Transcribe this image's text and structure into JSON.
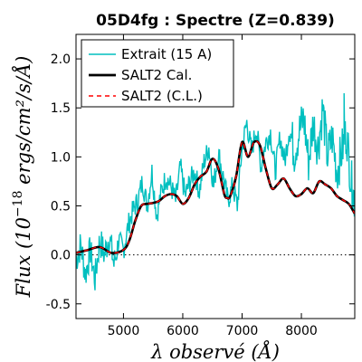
{
  "chart_data": {
    "type": "line",
    "title": "05D4fg : Spectre (Z=0.839)",
    "xlabel": "λ observé (Å)",
    "ylabel_pre": "Flux (10",
    "ylabel_exp": "−18",
    "ylabel_post": " ergs/cm²/s/Å)",
    "xlim": [
      4200,
      8900
    ],
    "ylim": [
      -0.65,
      2.25
    ],
    "xticks": [
      5000,
      6000,
      7000,
      8000
    ],
    "xtick_labels": [
      "5000",
      "6000",
      "7000",
      "8000"
    ],
    "yticks": [
      -0.5,
      0.0,
      0.5,
      1.0,
      1.5,
      2.0
    ],
    "ytick_labels": [
      "-0.5",
      "0.0",
      "0.5",
      "1.0",
      "1.5",
      "2.0"
    ],
    "zero_line": true,
    "legend_position": "top-left",
    "colors": {
      "extrait": "#00bfbf",
      "salt2_cal": "#000000",
      "salt2_cl": "#ff0000",
      "zero": "#000000"
    },
    "series": [
      {
        "name": "Extrait (15 A)",
        "style": "noisy-line",
        "x": [
          4200,
          4280,
          4360,
          4440,
          4520,
          4600,
          4680,
          4760,
          4840,
          4920,
          5000,
          5080,
          5160,
          5240,
          5320,
          5400,
          5480,
          5560,
          5640,
          5720,
          5800,
          5880,
          5960,
          6040,
          6120,
          6200,
          6280,
          6360,
          6440,
          6520,
          6600,
          6680,
          6760,
          6840,
          6920,
          7000,
          7080,
          7160,
          7240,
          7320,
          7400,
          7480,
          7560,
          7640,
          7720,
          7800,
          7880,
          7960,
          8040,
          8120,
          8200,
          8280,
          8360,
          8440,
          8520,
          8600,
          8680,
          8760,
          8840,
          8900
        ],
        "y": [
          -0.05,
          0.1,
          -0.2,
          0.05,
          -0.25,
          0.15,
          0.0,
          0.2,
          -0.1,
          0.15,
          0.05,
          0.3,
          0.45,
          0.55,
          0.75,
          0.5,
          0.85,
          0.4,
          0.65,
          0.8,
          0.7,
          0.55,
          0.9,
          0.6,
          0.75,
          0.85,
          0.65,
          0.95,
          1.1,
          0.7,
          1.05,
          0.8,
          0.55,
          0.7,
          0.5,
          1.1,
          1.35,
          1.05,
          1.3,
          0.9,
          1.15,
          1.25,
          0.85,
          1.2,
          0.95,
          1.3,
          1.05,
          1.25,
          1.4,
          0.95,
          1.35,
          1.1,
          1.5,
          1.0,
          1.2,
          0.85,
          1.05,
          1.25,
          0.75,
          0.55
        ]
      },
      {
        "name": "SALT2 Cal.",
        "style": "thick-line",
        "x": [
          4200,
          4400,
          4600,
          4800,
          5000,
          5100,
          5200,
          5300,
          5400,
          5500,
          5600,
          5700,
          5800,
          5900,
          6000,
          6100,
          6200,
          6300,
          6400,
          6500,
          6600,
          6700,
          6750,
          6800,
          6900,
          7000,
          7100,
          7200,
          7300,
          7400,
          7500,
          7600,
          7700,
          7800,
          7900,
          8000,
          8100,
          8200,
          8300,
          8400,
          8500,
          8600,
          8700,
          8800,
          8900
        ],
        "y": [
          0.02,
          0.05,
          0.08,
          0.02,
          0.05,
          0.15,
          0.35,
          0.5,
          0.52,
          0.53,
          0.55,
          0.6,
          0.62,
          0.6,
          0.52,
          0.58,
          0.72,
          0.8,
          0.85,
          0.98,
          0.88,
          0.62,
          0.58,
          0.6,
          0.8,
          1.15,
          1.0,
          1.15,
          1.12,
          0.88,
          0.68,
          0.72,
          0.78,
          0.68,
          0.6,
          0.62,
          0.68,
          0.63,
          0.75,
          0.72,
          0.68,
          0.6,
          0.56,
          0.52,
          0.42
        ]
      },
      {
        "name": "SALT2 (C.L.)",
        "style": "dashed-line",
        "x": [
          4200,
          4400,
          4600,
          4800,
          5000,
          5100,
          5200,
          5300,
          5400,
          5500,
          5600,
          5700,
          5800,
          5900,
          6000,
          6100,
          6200,
          6300,
          6400,
          6500,
          6600,
          6700,
          6750,
          6800,
          6900,
          7000,
          7100,
          7200,
          7300,
          7400,
          7500,
          7600,
          7700,
          7800,
          7900,
          8000,
          8100,
          8200,
          8300,
          8400,
          8500,
          8600,
          8700,
          8800,
          8900
        ],
        "y": [
          0.02,
          0.05,
          0.08,
          0.02,
          0.05,
          0.15,
          0.35,
          0.5,
          0.52,
          0.53,
          0.55,
          0.6,
          0.62,
          0.6,
          0.52,
          0.58,
          0.72,
          0.8,
          0.85,
          0.98,
          0.88,
          0.62,
          0.58,
          0.6,
          0.8,
          1.15,
          1.0,
          1.15,
          1.12,
          0.88,
          0.68,
          0.72,
          0.78,
          0.68,
          0.6,
          0.62,
          0.68,
          0.63,
          0.75,
          0.72,
          0.68,
          0.6,
          0.56,
          0.52,
          0.42
        ]
      }
    ]
  }
}
